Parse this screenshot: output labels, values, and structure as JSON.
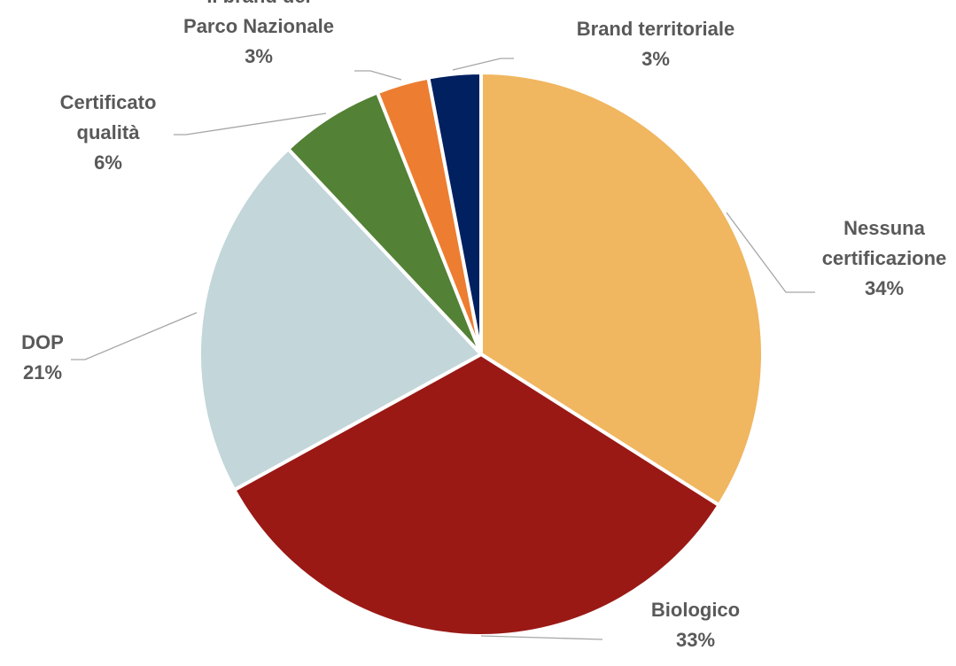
{
  "chart_data": {
    "type": "pie",
    "slices": [
      {
        "name": "Nessuna certificazione",
        "label_lines": [
          "Nessuna",
          "certificazione"
        ],
        "percent_label": "34%",
        "value": 34,
        "color": "#f0b660"
      },
      {
        "name": "Biologico",
        "label_lines": [
          "Biologico"
        ],
        "percent_label": "33%",
        "value": 33,
        "color": "#9a1915"
      },
      {
        "name": "DOP",
        "label_lines": [
          "DOP"
        ],
        "percent_label": "21%",
        "value": 21,
        "color": "#c3d6da"
      },
      {
        "name": "Certificato qualità",
        "label_lines": [
          "Certificato",
          "qualità"
        ],
        "percent_label": "6%",
        "value": 6,
        "color": "#538135"
      },
      {
        "name": "Il brand del Parco Nazionale",
        "label_lines": [
          "Il brand del",
          "Parco Nazionale"
        ],
        "percent_label": "3%",
        "value": 3,
        "color": "#ed7d31"
      },
      {
        "name": "Brand territoriale",
        "label_lines": [
          "Brand territoriale"
        ],
        "percent_label": "3%",
        "value": 3,
        "color": "#002060"
      }
    ],
    "legend": "none",
    "data_labels": "category name and percentage, outside with leader lines"
  }
}
